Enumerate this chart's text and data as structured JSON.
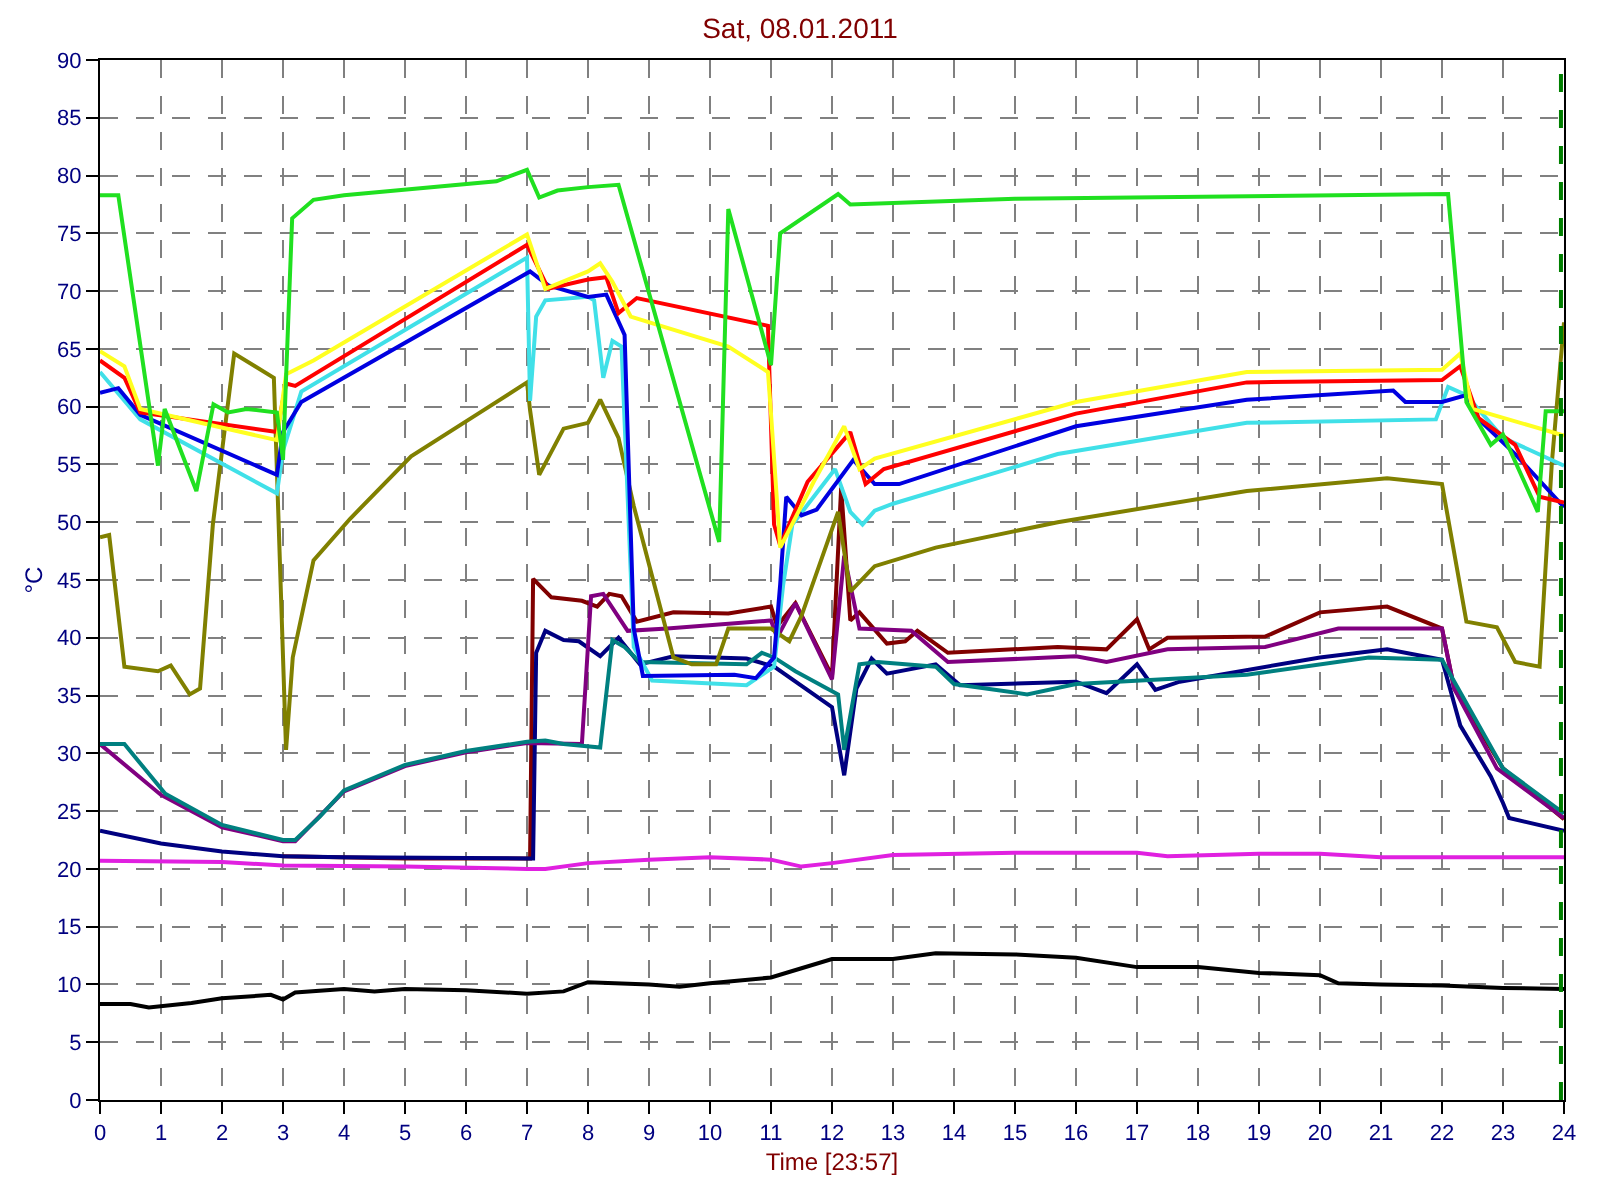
{
  "chart_data": {
    "type": "line",
    "title": "Sat, 08.01.2011",
    "xlabel": "Time [23:57]",
    "ylabel": "°C",
    "xlim": [
      0,
      24
    ],
    "xticks": [
      0,
      1,
      2,
      3,
      4,
      5,
      6,
      7,
      8,
      9,
      10,
      11,
      12,
      13,
      14,
      15,
      16,
      17,
      18,
      19,
      20,
      21,
      22,
      23,
      24
    ],
    "ylim": [
      0,
      90
    ],
    "yticks": [
      0,
      5,
      10,
      15,
      20,
      25,
      30,
      35,
      40,
      45,
      50,
      55,
      60,
      65,
      70,
      75,
      80,
      85,
      90
    ],
    "grid": true,
    "marker": "none",
    "line_style": "solid",
    "ref_lines": [
      {
        "axis": "x",
        "value": 23.95,
        "color": "#008000",
        "line_style": "dashed"
      }
    ],
    "series": [
      {
        "color": "#000000",
        "x": [
          0,
          0.5,
          0.8,
          1.5,
          2,
          2.8,
          3,
          3.2,
          4,
          4.5,
          5,
          6,
          7,
          7.6,
          8,
          9,
          9.5,
          10,
          11,
          11.5,
          12,
          13,
          13.7,
          15,
          16,
          17,
          18,
          19,
          20,
          20.3,
          21,
          22,
          23,
          24
        ],
        "values": [
          8.3,
          8.3,
          8,
          8.4,
          8.8,
          9.1,
          8.7,
          9.3,
          9.6,
          9.4,
          9.6,
          9.5,
          9.2,
          9.4,
          10.2,
          10,
          9.8,
          10.1,
          10.6,
          11.4,
          12.2,
          12.2,
          12.7,
          12.6,
          12.3,
          11.5,
          11.5,
          11,
          10.8,
          10.1,
          10,
          9.9,
          9.7,
          9.6
        ]
      },
      {
        "color": "#e020e0",
        "x": [
          0,
          2,
          3,
          5,
          7,
          7.3,
          8,
          9,
          10,
          11,
          11.5,
          12,
          13,
          15,
          17,
          17.5,
          19,
          20,
          21,
          24
        ],
        "values": [
          20.7,
          20.6,
          20.3,
          20.2,
          20,
          20,
          20.5,
          20.8,
          21,
          20.8,
          20.2,
          20.5,
          21.2,
          21.4,
          21.4,
          21.1,
          21.3,
          21.3,
          21,
          21
        ]
      },
      {
        "color": "#800000",
        "x": [
          3,
          5,
          7.05,
          7.1,
          7.4,
          7.9,
          8.15,
          8.35,
          8.55,
          8.8,
          9.4,
          10.3,
          11,
          11.1,
          11.4,
          12,
          12.15,
          12.3,
          12.45,
          12.9,
          13.2,
          13.4,
          13.9,
          15.7,
          16.5,
          17,
          17.2,
          17.5,
          19.1,
          20,
          21.1,
          22,
          22.2,
          23,
          24
        ],
        "values": [
          21.1,
          20.9,
          20.9,
          45.1,
          43.5,
          43.2,
          42.7,
          43.8,
          43.6,
          41.4,
          42.2,
          42.1,
          42.7,
          41,
          43,
          36.7,
          53,
          41.5,
          42.2,
          39.5,
          39.7,
          40.6,
          38.7,
          39.2,
          39,
          41.6,
          39,
          40,
          40.1,
          42.2,
          42.7,
          40.8,
          35.6,
          28.7,
          24.3
        ]
      },
      {
        "color": "#000080",
        "x": [
          0,
          1,
          2,
          3,
          4,
          7,
          7.1,
          7.15,
          7.3,
          7.6,
          7.85,
          8.2,
          8.5,
          8.85,
          9.4,
          10.6,
          11.05,
          12,
          12.2,
          12.4,
          12.65,
          12.9,
          13.7,
          14.1,
          16,
          16.5,
          17,
          17.3,
          17.7,
          20,
          21.1,
          22,
          22.3,
          22.8,
          23,
          23.1,
          24
        ],
        "values": [
          23.3,
          22.2,
          21.5,
          21.1,
          21,
          20.9,
          20.9,
          38.7,
          40.6,
          39.8,
          39.7,
          38.4,
          40,
          37.7,
          38.4,
          38.2,
          37.5,
          34,
          28.1,
          35.6,
          38.2,
          36.9,
          37.7,
          35.9,
          36.2,
          35.2,
          37.7,
          35.5,
          36.2,
          38.3,
          39,
          38.1,
          32.4,
          28,
          25.7,
          24.4,
          23.3
        ]
      },
      {
        "color": "#800080",
        "x": [
          0,
          1,
          2,
          3,
          3.2,
          4,
          5,
          6,
          7,
          7.9,
          8.05,
          8.25,
          8.65,
          9.3,
          11,
          11.1,
          11.4,
          12,
          12.2,
          12.45,
          13.3,
          13.9,
          16,
          16.5,
          17.5,
          19.1,
          20.3,
          22,
          22.2,
          22.9,
          24
        ],
        "values": [
          30.8,
          26.4,
          23.6,
          22.4,
          22.4,
          26.7,
          28.9,
          30.1,
          30.9,
          30.8,
          43.6,
          43.8,
          40.6,
          40.8,
          41.5,
          40,
          43,
          36.4,
          47.1,
          40.8,
          40.6,
          37.9,
          38.4,
          37.9,
          39,
          39.2,
          40.8,
          40.8,
          35.6,
          28.7,
          24.4
        ]
      },
      {
        "color": "#008080",
        "x": [
          0,
          0.4,
          1.07,
          2,
          3,
          3.2,
          3.6,
          4,
          5,
          6,
          7,
          7.3,
          7.6,
          8.2,
          8.4,
          8.6,
          8.85,
          10.6,
          10.85,
          11.05,
          11.4,
          12.1,
          12.2,
          12.45,
          12.75,
          13.7,
          14,
          15.2,
          16,
          18.8,
          20.8,
          22,
          23,
          24
        ],
        "values": [
          30.8,
          30.8,
          26.5,
          23.8,
          22.5,
          22.5,
          24.5,
          26.8,
          29,
          30.2,
          31,
          31.1,
          30.8,
          30.5,
          39.8,
          39.2,
          37.9,
          37.7,
          38.7,
          38.3,
          37.1,
          35.1,
          30.3,
          37.7,
          37.9,
          37.5,
          36,
          35.1,
          36,
          36.8,
          38.3,
          38.1,
          28.7,
          24.8
        ]
      },
      {
        "color": "#808000",
        "x": [
          0,
          0.15,
          0.4,
          0.95,
          1.16,
          1.47,
          1.64,
          1.85,
          2.2,
          2.85,
          3.05,
          3.16,
          3.5,
          4.1,
          5.1,
          6.2,
          7,
          7.05,
          7.2,
          7.6,
          8,
          8.2,
          8.5,
          8.75,
          9.4,
          9.7,
          10.1,
          10.3,
          11,
          11.3,
          11.5,
          12.1,
          12.3,
          12.7,
          13.7,
          15.7,
          18.8,
          21.1,
          22,
          22.4,
          22.9,
          23.2,
          23.6,
          23.8,
          24
        ],
        "values": [
          48.7,
          48.9,
          37.5,
          37.1,
          37.6,
          35.1,
          35.6,
          49.8,
          64.6,
          62.5,
          30.3,
          38.3,
          46.7,
          50.3,
          55.7,
          59.4,
          62.1,
          59.7,
          54.1,
          58.1,
          58.6,
          60.6,
          57.3,
          51.4,
          38.3,
          37.7,
          37.7,
          40.8,
          40.8,
          39.7,
          41.9,
          50.9,
          44,
          46.2,
          47.8,
          50,
          52.7,
          53.8,
          53.3,
          41.4,
          40.9,
          37.9,
          37.5,
          55.1,
          67.3
        ]
      },
      {
        "color": "#40e0e8",
        "x": [
          0,
          0.66,
          2.9,
          3,
          3.3,
          7,
          7.05,
          7.15,
          7.3,
          8,
          8.1,
          8.25,
          8.4,
          8.55,
          8.75,
          9.05,
          10.6,
          11.05,
          11.2,
          11.35,
          12.05,
          12.3,
          12.5,
          12.7,
          13,
          15.7,
          18.8,
          21.9,
          22.1,
          22.4,
          23,
          24
        ],
        "values": [
          63,
          58.9,
          52.5,
          56.2,
          61.3,
          72.9,
          60.5,
          67.8,
          69.2,
          69.5,
          69.2,
          62.5,
          65.7,
          65.2,
          39.2,
          36.3,
          35.9,
          37.5,
          44.6,
          49.8,
          54.6,
          50.9,
          49.8,
          51,
          51.6,
          55.9,
          58.6,
          58.9,
          61.7,
          61,
          57.3,
          54.9
        ]
      },
      {
        "color": "#0000e0",
        "x": [
          0,
          0.3,
          0.66,
          2.9,
          3,
          3.3,
          7.05,
          7.35,
          8,
          8.3,
          8.6,
          8.75,
          8.9,
          10.4,
          10.75,
          11.05,
          11.15,
          11.25,
          11.5,
          11.75,
          12.35,
          12.7,
          13.1,
          16,
          18.8,
          21.2,
          21.4,
          22,
          22.4,
          22.6,
          23.2,
          24
        ],
        "values": [
          61.2,
          61.6,
          59.3,
          54.1,
          57.8,
          60.4,
          71.7,
          70.5,
          69.5,
          69.7,
          66.2,
          40.8,
          36.7,
          36.8,
          36.5,
          38.3,
          44.6,
          52.2,
          50.6,
          51.1,
          55.4,
          53.3,
          53.3,
          58.3,
          60.6,
          61.4,
          60.4,
          60.4,
          61,
          58.9,
          55.9,
          51.3
        ]
      },
      {
        "color": "#ff0000",
        "x": [
          0,
          0.4,
          0.66,
          2.9,
          3.05,
          3.2,
          7,
          7.35,
          8,
          8.3,
          8.5,
          8.8,
          10.95,
          11.05,
          11.15,
          11.6,
          12.3,
          12.55,
          12.85,
          16,
          18.8,
          22,
          22.3,
          22.6,
          23.2,
          23.6,
          24
        ],
        "values": [
          64,
          62.5,
          59.5,
          57.8,
          62,
          61.8,
          74,
          70.2,
          71,
          71.2,
          68.1,
          69.4,
          67,
          49.8,
          48,
          53.5,
          57.8,
          53.3,
          54.6,
          59.4,
          62.1,
          62.3,
          63.5,
          59,
          56.7,
          52.2,
          51.7
        ]
      },
      {
        "color": "#ffff20",
        "x": [
          0,
          0.4,
          0.66,
          2.9,
          3.05,
          3.5,
          7,
          7.3,
          8,
          8.2,
          8.4,
          8.7,
          10.3,
          10.95,
          11,
          11.15,
          11.7,
          12.2,
          12.45,
          12.7,
          16,
          18.8,
          22,
          22.3,
          22.5,
          24
        ],
        "values": [
          64.8,
          63.5,
          59.8,
          57.1,
          62.8,
          64,
          74.9,
          70.2,
          71.7,
          72.4,
          70.8,
          67.8,
          65.2,
          63,
          59.4,
          47.8,
          53.5,
          58.3,
          54.6,
          55.5,
          60.4,
          63,
          63.2,
          64.6,
          59.8,
          57.5
        ]
      },
      {
        "color": "#20e020",
        "x": [
          0,
          0.3,
          0.95,
          1.06,
          1.58,
          1.86,
          2.1,
          2.4,
          2.9,
          3,
          3.05,
          3.15,
          3.5,
          4,
          6.5,
          7,
          7.2,
          7.5,
          8,
          8.5,
          10.15,
          10.3,
          11,
          11.15,
          12.1,
          12.3,
          15,
          22.1,
          22.4,
          22.8,
          23,
          23.57,
          23.7,
          24
        ],
        "values": [
          78.3,
          78.3,
          54.9,
          59.8,
          52.7,
          60.2,
          59.5,
          59.8,
          59.5,
          55.4,
          62.5,
          76.3,
          77.9,
          78.3,
          79.5,
          80.5,
          78.1,
          78.7,
          79,
          79.2,
          48.3,
          77.1,
          63.6,
          75,
          78.4,
          77.5,
          78,
          78.4,
          60.4,
          56.7,
          57.6,
          50.9,
          59.6,
          59.6
        ]
      }
    ]
  }
}
